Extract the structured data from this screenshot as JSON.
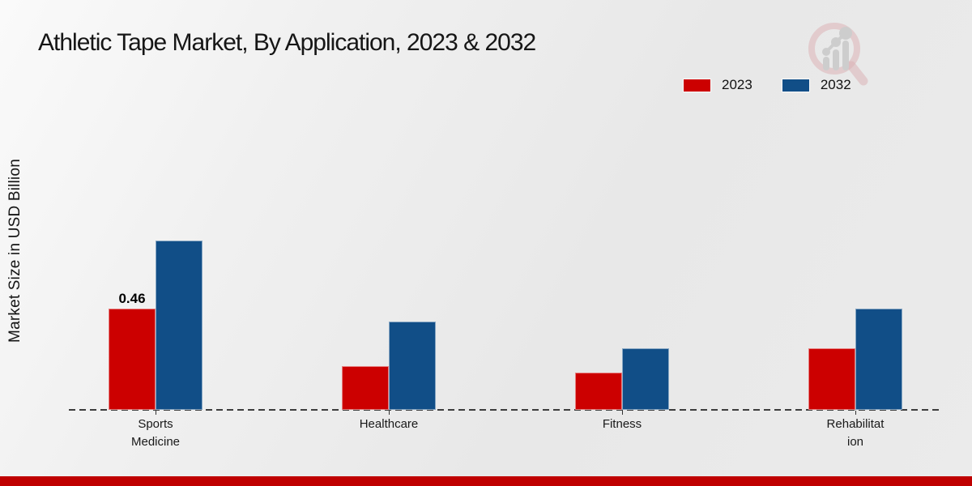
{
  "header": {
    "title": "Athletic Tape Market, By Application, 2023 & 2032"
  },
  "icons": {
    "watermark": "magnifier-growth-chart-logo"
  },
  "legend": {
    "items": [
      {
        "label": "2023",
        "color": "#cc0000"
      },
      {
        "label": "2032",
        "color": "#114e87"
      }
    ]
  },
  "chart_data": {
    "type": "bar",
    "title": "Athletic Tape Market, By Application, 2023 & 2032",
    "categories": [
      "Sports Medicine",
      "Healthcare",
      "Fitness",
      "Rehabilitation"
    ],
    "category_display": [
      [
        "Sports",
        "Medicine"
      ],
      [
        "Healthcare"
      ],
      [
        "Fitness"
      ],
      [
        "Rehabilitat",
        "ion"
      ]
    ],
    "series": [
      {
        "name": "2023",
        "color": "#cc0000",
        "values": [
          0.46,
          0.2,
          0.17,
          0.28
        ]
      },
      {
        "name": "2032",
        "color": "#114e87",
        "values": [
          0.77,
          0.4,
          0.28,
          0.46
        ]
      }
    ],
    "data_labels": [
      {
        "series_index": 0,
        "category_index": 0,
        "text": "0.46"
      }
    ],
    "xlabel": "",
    "ylabel": "Market Size in USD Billion",
    "ylim": [
      0,
      0.9
    ],
    "grid": false,
    "legend_position": "top-right",
    "baseline_style": "dashed"
  },
  "footer": {
    "accent_color": "#bf0000"
  }
}
